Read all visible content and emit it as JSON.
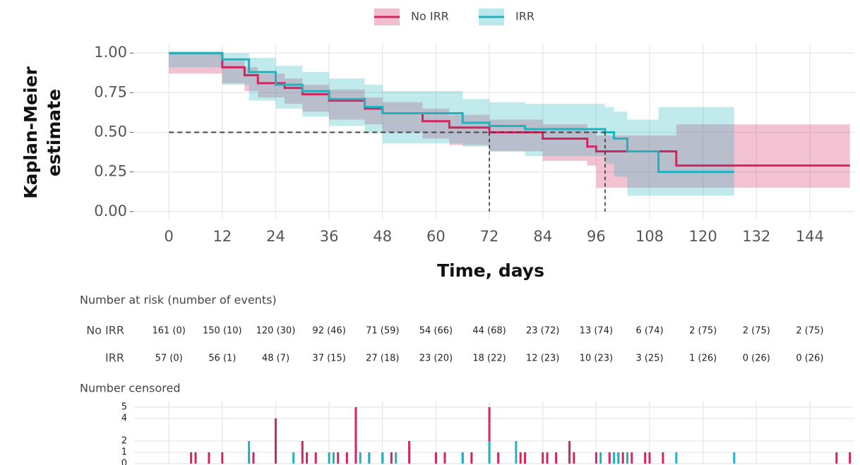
{
  "chart_data": [
    {
      "type": "step",
      "y_label": "Kaplan-Meier",
      "y_label_2": "estimate",
      "x_label": "Time, days",
      "xlim": [
        -7.8,
        154
      ],
      "ylim": [
        -0.05,
        1.05
      ],
      "xticks": [
        0,
        12,
        24,
        36,
        48,
        60,
        72,
        84,
        96,
        108,
        120,
        132,
        144
      ],
      "yticks": [
        {
          "value": 1,
          "label": "1.00"
        },
        0.75,
        {
          "value": 0.5,
          "label": "0.50"
        },
        0.25,
        {
          "value": 0,
          "label": "0.00"
        }
      ],
      "grid": true,
      "series": [
        {
          "name": "No IRR",
          "color": "#d3245f",
          "x": [
            0,
            12,
            17,
            20,
            26,
            30,
            36,
            44,
            48,
            57,
            63,
            72,
            84,
            94,
            96,
            114,
            153
          ],
          "values": [
            1,
            0.91,
            0.86,
            0.81,
            0.78,
            0.74,
            0.7,
            0.65,
            0.62,
            0.57,
            0.53,
            0.5,
            0.46,
            0.41,
            0.38,
            0.29,
            0.29
          ],
          "lower": [
            1,
            0.87,
            0.81,
            0.76,
            0.72,
            0.68,
            0.63,
            0.58,
            0.55,
            0.5,
            0.46,
            0.42,
            0.38,
            0.32,
            0.29,
            0.15,
            0.15
          ],
          "upper": [
            1,
            0.95,
            0.91,
            0.87,
            0.84,
            0.8,
            0.77,
            0.72,
            0.69,
            0.65,
            0.61,
            0.58,
            0.55,
            0.51,
            0.48,
            0.55,
            0.55
          ]
        },
        {
          "name": "IRR",
          "color": "#1fb3bf",
          "x": [
            0,
            12,
            18,
            24,
            30,
            36,
            44,
            48,
            66,
            72,
            80,
            98,
            100,
            103,
            110,
            127
          ],
          "values": [
            1,
            0.96,
            0.88,
            0.8,
            0.76,
            0.71,
            0.66,
            0.62,
            0.56,
            0.54,
            0.52,
            0.5,
            0.46,
            0.38,
            0.25,
            0.25
          ],
          "lower": [
            1,
            0.91,
            0.8,
            0.7,
            0.65,
            0.6,
            0.54,
            0.5,
            0.43,
            0.41,
            0.38,
            0.35,
            0.3,
            0.22,
            0.1,
            0.1
          ],
          "upper": [
            1,
            1,
            0.97,
            0.92,
            0.88,
            0.84,
            0.8,
            0.76,
            0.71,
            0.69,
            0.68,
            0.66,
            0.63,
            0.58,
            0.66,
            0.66
          ]
        }
      ],
      "median_lines": {
        "y": 0.5,
        "x": [
          72,
          98
        ]
      }
    },
    {
      "type": "bar",
      "title": "Number censored",
      "xlim": [
        -7.8,
        154
      ],
      "ylim": [
        0,
        5.5
      ],
      "yticks": [
        0,
        1,
        2,
        4,
        5
      ],
      "series": [
        {
          "name": "No IRR",
          "color": "#d3245f",
          "x": [
            5,
            6,
            9,
            12,
            18,
            19,
            24,
            30,
            31,
            33,
            38,
            40,
            42,
            45,
            48,
            50,
            54,
            60,
            62,
            66,
            68,
            72,
            74,
            79,
            80,
            84,
            85,
            87,
            90,
            91,
            96,
            99,
            101,
            102,
            104,
            107,
            108,
            111,
            150,
            153
          ],
          "values": [
            1,
            1,
            1,
            1,
            1,
            1,
            4,
            2,
            1,
            1,
            1,
            1,
            5,
            1,
            1,
            1,
            2,
            1,
            1,
            1,
            1,
            5,
            1,
            1,
            1,
            1,
            1,
            1,
            2,
            1,
            1,
            1,
            1,
            1,
            1,
            1,
            1,
            1,
            1,
            1
          ]
        },
        {
          "name": "IRR",
          "color": "#1fb3bf",
          "x": [
            18,
            28,
            36,
            37,
            43,
            45,
            48,
            51,
            66,
            72,
            78,
            97,
            100,
            101,
            103,
            114,
            127
          ],
          "values": [
            2,
            1,
            1,
            1,
            1,
            1,
            1,
            1,
            1,
            2,
            2,
            1,
            1,
            1,
            1,
            1,
            1
          ]
        }
      ]
    }
  ],
  "risk_table": {
    "title": "Number at risk (number of events)",
    "row_labels": [
      "No IRR",
      "IRR"
    ],
    "rows": [
      [
        "161 (0)",
        "150 (10)",
        "120 (30)",
        "92 (46)",
        "71 (59)",
        "54 (66)",
        "44 (68)",
        "23 (72)",
        "13 (74)",
        "6 (74)",
        "2 (75)",
        "2 (75)",
        "2 (75)"
      ],
      [
        "57 (0)",
        "56 (1)",
        "48 (7)",
        "37 (15)",
        "27 (18)",
        "23 (20)",
        "18 (22)",
        "12 (23)",
        "10 (23)",
        "3 (25)",
        "1 (26)",
        "0 (26)",
        "0 (26)"
      ]
    ]
  }
}
